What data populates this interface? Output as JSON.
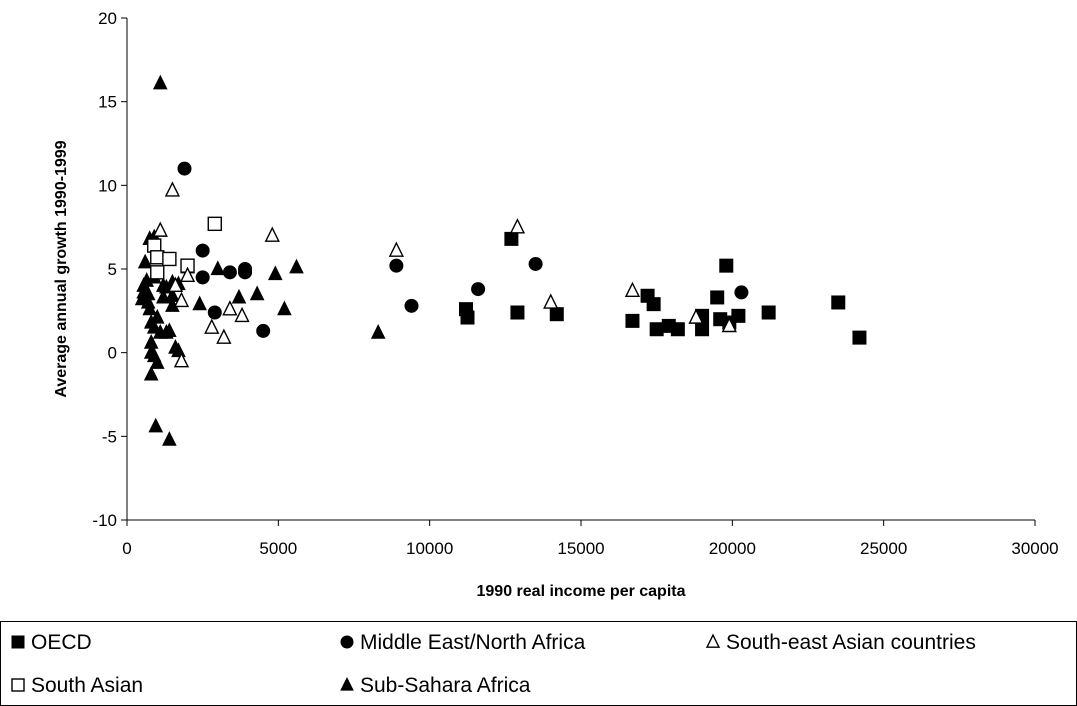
{
  "chart_data": {
    "type": "scatter",
    "title": "",
    "xlabel": "1990 real income per capita",
    "ylabel": "Average annual growth 1990-1999",
    "xlim": [
      0,
      30000
    ],
    "ylim": [
      -10,
      20
    ],
    "x_ticks": [
      0,
      5000,
      10000,
      15000,
      20000,
      25000,
      30000
    ],
    "y_ticks": [
      -10,
      -5,
      0,
      5,
      10,
      15,
      20
    ],
    "grid": false,
    "legend_position": "bottom",
    "series": [
      {
        "name": "OECD",
        "marker": "square-filled",
        "points": [
          [
            11200,
            2.6
          ],
          [
            11250,
            2.1
          ],
          [
            12700,
            6.8
          ],
          [
            12900,
            2.4
          ],
          [
            14200,
            2.3
          ],
          [
            16700,
            1.9
          ],
          [
            17200,
            3.4
          ],
          [
            17400,
            2.9
          ],
          [
            17500,
            1.4
          ],
          [
            17900,
            1.6
          ],
          [
            18200,
            1.4
          ],
          [
            19000,
            2.2
          ],
          [
            19000,
            1.4
          ],
          [
            19500,
            3.3
          ],
          [
            19600,
            2.0
          ],
          [
            19800,
            5.2
          ],
          [
            19900,
            1.8
          ],
          [
            20200,
            2.2
          ],
          [
            21200,
            2.4
          ],
          [
            23500,
            3.0
          ],
          [
            24200,
            0.9
          ]
        ]
      },
      {
        "name": "Middle East/North Africa",
        "marker": "circle-filled",
        "points": [
          [
            1900,
            11.0
          ],
          [
            2500,
            6.1
          ],
          [
            2500,
            4.5
          ],
          [
            2900,
            2.4
          ],
          [
            3400,
            4.8
          ],
          [
            3900,
            4.8
          ],
          [
            3900,
            5.0
          ],
          [
            4500,
            1.3
          ],
          [
            8900,
            5.2
          ],
          [
            9400,
            2.8
          ],
          [
            11600,
            3.8
          ],
          [
            13500,
            5.3
          ],
          [
            20300,
            3.6
          ]
        ]
      },
      {
        "name": "South-east Asian countries",
        "marker": "triangle-open",
        "points": [
          [
            1100,
            7.3
          ],
          [
            1500,
            9.7
          ],
          [
            1600,
            4.0
          ],
          [
            1800,
            3.1
          ],
          [
            1800,
            -0.5
          ],
          [
            2000,
            4.6
          ],
          [
            2800,
            1.5
          ],
          [
            3200,
            0.9
          ],
          [
            3400,
            2.6
          ],
          [
            3800,
            2.2
          ],
          [
            4800,
            7.0
          ],
          [
            8900,
            6.1
          ],
          [
            12900,
            7.5
          ],
          [
            14000,
            3.0
          ],
          [
            16700,
            3.7
          ],
          [
            18800,
            2.1
          ],
          [
            19900,
            1.6
          ]
        ]
      },
      {
        "name": "South Asian",
        "marker": "square-open",
        "points": [
          [
            900,
            6.4
          ],
          [
            1000,
            5.7
          ],
          [
            1000,
            4.8
          ],
          [
            1400,
            5.6
          ],
          [
            2000,
            5.2
          ],
          [
            2900,
            7.7
          ]
        ]
      },
      {
        "name": "Sub-Sahara Africa",
        "marker": "triangle-filled",
        "points": [
          [
            500,
            3.2
          ],
          [
            550,
            3.6
          ],
          [
            550,
            4.0
          ],
          [
            600,
            5.4
          ],
          [
            650,
            4.3
          ],
          [
            700,
            3.5
          ],
          [
            700,
            3.0
          ],
          [
            750,
            6.8
          ],
          [
            750,
            2.6
          ],
          [
            800,
            1.8
          ],
          [
            800,
            0.6
          ],
          [
            800,
            0.0
          ],
          [
            800,
            -1.3
          ],
          [
            900,
            6.9
          ],
          [
            900,
            4.5
          ],
          [
            900,
            1.5
          ],
          [
            900,
            -0.2
          ],
          [
            950,
            -4.4
          ],
          [
            1000,
            2.1
          ],
          [
            1000,
            -0.6
          ],
          [
            1100,
            16.1
          ],
          [
            1100,
            1.2
          ],
          [
            1200,
            4.0
          ],
          [
            1200,
            3.3
          ],
          [
            1300,
            1.2
          ],
          [
            1300,
            3.9
          ],
          [
            1400,
            1.3
          ],
          [
            1400,
            -5.2
          ],
          [
            1500,
            4.2
          ],
          [
            1500,
            2.8
          ],
          [
            1500,
            3.4
          ],
          [
            1600,
            0.3
          ],
          [
            1700,
            4.1
          ],
          [
            1700,
            0.1
          ],
          [
            2000,
            5.1
          ],
          [
            2400,
            2.9
          ],
          [
            3000,
            5.0
          ],
          [
            3700,
            3.3
          ],
          [
            4300,
            3.5
          ],
          [
            4900,
            4.7
          ],
          [
            5200,
            2.6
          ],
          [
            5600,
            5.1
          ],
          [
            8300,
            1.2
          ]
        ]
      }
    ]
  }
}
